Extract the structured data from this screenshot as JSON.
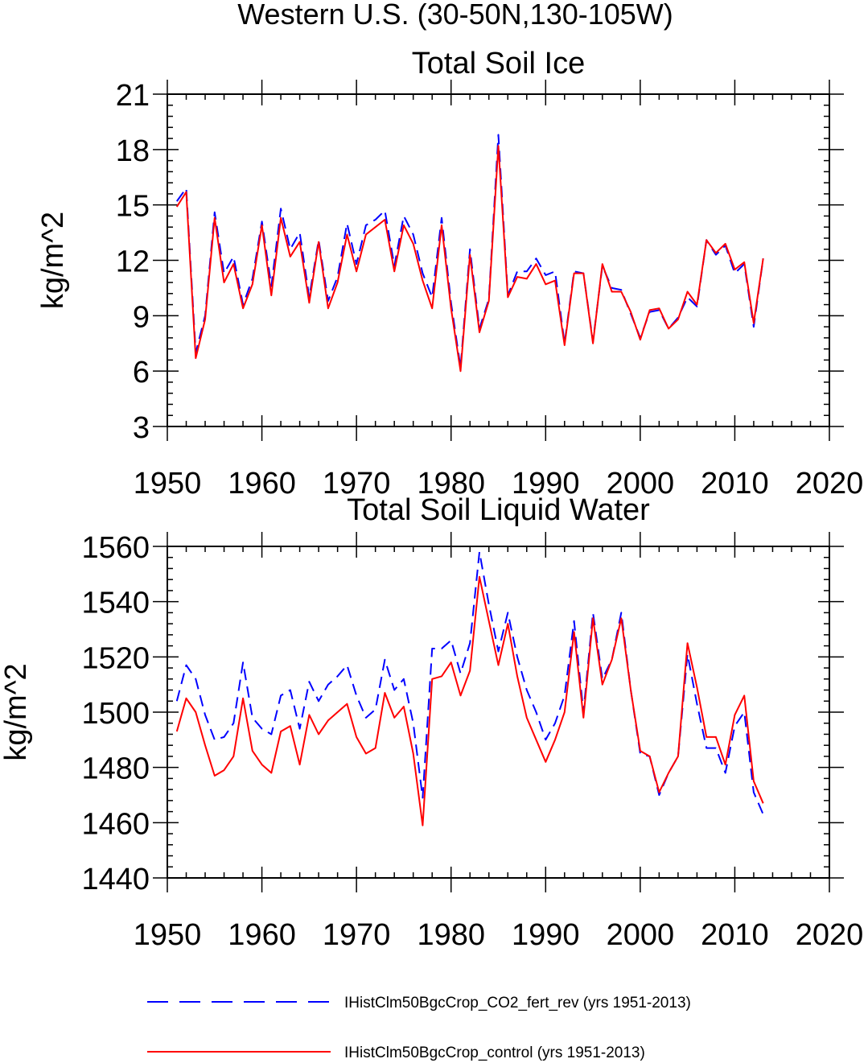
{
  "figure_title": "Western U.S. (30-50N,130-105W)",
  "legend": {
    "items": [
      {
        "label": "IHistClm50BgcCrop_CO2_fert_rev (yrs 1951-2013)",
        "color": "#0000ff",
        "style": "dashed"
      },
      {
        "label": "IHistClm50BgcCrop_control (yrs 1951-2013)",
        "color": "#ff0000",
        "style": "solid"
      }
    ]
  },
  "chart_data": [
    {
      "type": "line",
      "title": "Total Soil Ice",
      "xlabel": "",
      "ylabel": "kg/m^2",
      "xlim": [
        1950,
        2020
      ],
      "ylim": [
        3,
        21
      ],
      "xticks": [
        1950,
        1960,
        1970,
        1980,
        1990,
        2000,
        2010,
        2020
      ],
      "yticks": [
        3,
        6,
        9,
        12,
        15,
        18,
        21
      ],
      "y_minor_step": 0.6,
      "grid": false,
      "x": [
        1951,
        1952,
        1953,
        1954,
        1955,
        1956,
        1957,
        1958,
        1959,
        1960,
        1961,
        1962,
        1963,
        1964,
        1965,
        1966,
        1967,
        1968,
        1969,
        1970,
        1971,
        1972,
        1973,
        1974,
        1975,
        1976,
        1977,
        1978,
        1979,
        1980,
        1981,
        1982,
        1983,
        1984,
        1985,
        1986,
        1987,
        1988,
        1989,
        1990,
        1991,
        1992,
        1993,
        1994,
        1995,
        1996,
        1997,
        1998,
        1999,
        2000,
        2001,
        2002,
        2003,
        2004,
        2005,
        2006,
        2007,
        2008,
        2009,
        2010,
        2011,
        2012,
        2013
      ],
      "series": [
        {
          "name": "IHistClm50BgcCrop_CO2_fert_rev (yrs 1951-2013)",
          "color": "#0000ff",
          "dash": true,
          "values": [
            15.2,
            15.9,
            7.0,
            9.0,
            14.6,
            11.3,
            12.2,
            9.6,
            11.0,
            14.1,
            10.6,
            14.8,
            12.6,
            13.5,
            10.0,
            13.1,
            9.8,
            11.1,
            14.0,
            11.8,
            13.9,
            14.2,
            14.7,
            11.7,
            14.4,
            13.4,
            11.3,
            10.0,
            14.3,
            9.7,
            6.2,
            12.6,
            8.3,
            9.9,
            18.8,
            10.1,
            11.4,
            11.4,
            12.1,
            11.2,
            11.4,
            7.5,
            11.4,
            11.3,
            7.6,
            11.7,
            10.5,
            10.4,
            9.1,
            7.8,
            9.2,
            9.3,
            8.3,
            8.9,
            10.0,
            9.5,
            13.1,
            12.3,
            12.8,
            11.3,
            11.8,
            8.4,
            12.1
          ]
        },
        {
          "name": "IHistClm50BgcCrop_control (yrs 1951-2013)",
          "color": "#ff0000",
          "dash": false,
          "values": [
            14.9,
            15.7,
            6.7,
            8.8,
            14.3,
            10.8,
            11.8,
            9.4,
            10.7,
            13.9,
            10.1,
            14.3,
            12.2,
            13.0,
            9.7,
            13.0,
            9.4,
            10.8,
            13.4,
            11.4,
            13.4,
            13.8,
            14.2,
            11.4,
            13.9,
            12.9,
            10.9,
            9.4,
            13.9,
            9.4,
            6.0,
            12.3,
            8.1,
            9.8,
            18.2,
            10.0,
            11.1,
            11.0,
            11.8,
            10.7,
            10.9,
            7.4,
            11.3,
            11.3,
            7.5,
            11.8,
            10.3,
            10.3,
            9.2,
            7.7,
            9.3,
            9.4,
            8.3,
            8.8,
            10.3,
            9.6,
            13.1,
            12.4,
            12.9,
            11.5,
            11.9,
            8.6,
            12.1
          ]
        }
      ]
    },
    {
      "type": "line",
      "title": "Total Soil Liquid Water",
      "xlabel": "",
      "ylabel": "kg/m^2",
      "xlim": [
        1950,
        2020
      ],
      "ylim": [
        1440,
        1560
      ],
      "xticks": [
        1950,
        1960,
        1970,
        1980,
        1990,
        2000,
        2010,
        2020
      ],
      "yticks": [
        1440,
        1460,
        1480,
        1500,
        1520,
        1540,
        1560
      ],
      "y_minor_step": 4,
      "grid": false,
      "x": [
        1951,
        1952,
        1953,
        1954,
        1955,
        1956,
        1957,
        1958,
        1959,
        1960,
        1961,
        1962,
        1963,
        1964,
        1965,
        1966,
        1967,
        1968,
        1969,
        1970,
        1971,
        1972,
        1973,
        1974,
        1975,
        1976,
        1977,
        1978,
        1979,
        1980,
        1981,
        1982,
        1983,
        1984,
        1985,
        1986,
        1987,
        1988,
        1989,
        1990,
        1991,
        1992,
        1993,
        1994,
        1995,
        1996,
        1997,
        1998,
        1999,
        2000,
        2001,
        2002,
        2003,
        2004,
        2005,
        2006,
        2007,
        2008,
        2009,
        2010,
        2011,
        2012,
        2013
      ],
      "series": [
        {
          "name": "IHistClm50BgcCrop_CO2_fert_rev (yrs 1951-2013)",
          "color": "#0000ff",
          "dash": true,
          "values": [
            1504,
            1517,
            1512,
            1499,
            1490,
            1491,
            1496,
            1518,
            1498,
            1494,
            1492,
            1506,
            1508,
            1494,
            1511,
            1504,
            1510,
            1513,
            1517,
            1506,
            1498,
            1501,
            1519,
            1508,
            1512,
            1496,
            1469,
            1523,
            1523,
            1526,
            1514,
            1525,
            1558,
            1539,
            1522,
            1536,
            1520,
            1508,
            1500,
            1490,
            1496,
            1506,
            1533,
            1500,
            1536,
            1512,
            1519,
            1536,
            1508,
            1485,
            1484,
            1470,
            1478,
            1484,
            1521,
            1503,
            1487,
            1487,
            1478,
            1495,
            1500,
            1471,
            1463
          ]
        },
        {
          "name": "IHistClm50BgcCrop_control (yrs 1951-2013)",
          "color": "#ff0000",
          "dash": false,
          "values": [
            1493,
            1505,
            1500,
            1488,
            1477,
            1479,
            1484,
            1505,
            1486,
            1481,
            1478,
            1493,
            1495,
            1481,
            1499,
            1492,
            1497,
            1500,
            1503,
            1491,
            1485,
            1487,
            1507,
            1498,
            1502,
            1485,
            1459,
            1512,
            1513,
            1518,
            1506,
            1515,
            1549,
            1533,
            1517,
            1532,
            1513,
            1498,
            1490,
            1482,
            1490,
            1500,
            1529,
            1498,
            1534,
            1510,
            1519,
            1534,
            1508,
            1486,
            1484,
            1471,
            1478,
            1484,
            1525,
            1509,
            1491,
            1491,
            1481,
            1499,
            1506,
            1475,
            1467
          ]
        }
      ]
    }
  ]
}
